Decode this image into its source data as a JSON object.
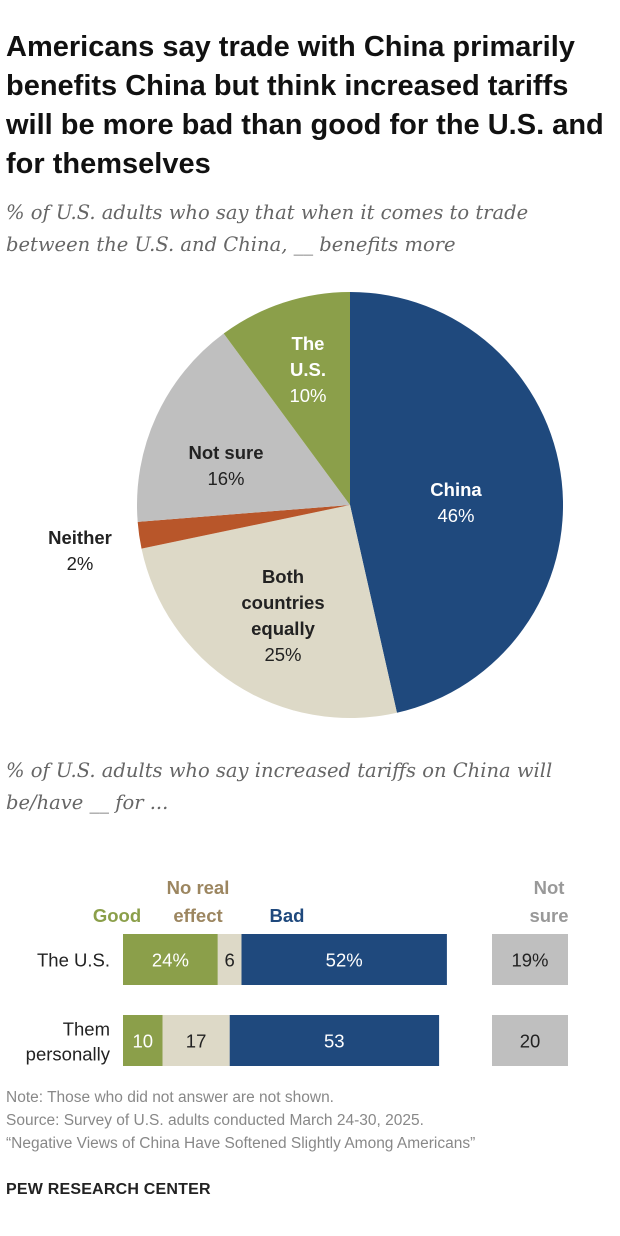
{
  "title": "Americans say trade with China primarily benefits China but think increased tariffs will be more bad than good for the U.S. and for themselves",
  "chart_data": [
    {
      "type": "pie",
      "title": "% of U.S. adults who say that when it comes to trade between the U.S. and China, __ benefits more",
      "slices": [
        {
          "label": "China",
          "value": 46,
          "value_label": "46%",
          "color": "#1f497d"
        },
        {
          "label": "Both countries equally",
          "value": 25,
          "value_label": "25%",
          "color": "#ddd9c7"
        },
        {
          "label": "Neither",
          "value": 2,
          "value_label": "2%",
          "color": "#b8562a"
        },
        {
          "label": "Not sure",
          "value": 16,
          "value_label": "16%",
          "color": "#bfbfbf"
        },
        {
          "label": "The U.S.",
          "value": 10,
          "value_label": "10%",
          "color": "#8b9f4a"
        }
      ]
    },
    {
      "type": "bar",
      "stacked": true,
      "orientation": "horizontal",
      "title": "% of U.S. adults who say increased tariffs on China will be/have __ for ...",
      "categories": [
        "The U.S.",
        "Them personally"
      ],
      "series": [
        {
          "name": "Good",
          "values": [
            24,
            10
          ],
          "value_labels": [
            "24%",
            "10"
          ],
          "color": "#8b9f4a"
        },
        {
          "name": "No real effect",
          "values": [
            6,
            17
          ],
          "value_labels": [
            "6",
            "17"
          ],
          "color": "#ddd9c7"
        },
        {
          "name": "Bad",
          "values": [
            52,
            53
          ],
          "value_labels": [
            "52%",
            "53"
          ],
          "color": "#1f497d"
        }
      ],
      "not_sure": {
        "name": "Not sure",
        "values": [
          19,
          20
        ],
        "value_labels": [
          "19%",
          "20"
        ],
        "color": "#bfbfbf"
      }
    }
  ],
  "notes": {
    "note": "Note: Those who did not answer are not shown.",
    "source": "Source: Survey of U.S. adults conducted March 24-30, 2025.",
    "report": "“Negative Views of China Have Softened Slightly Among Americans”"
  },
  "brand": "PEW RESEARCH CENTER"
}
